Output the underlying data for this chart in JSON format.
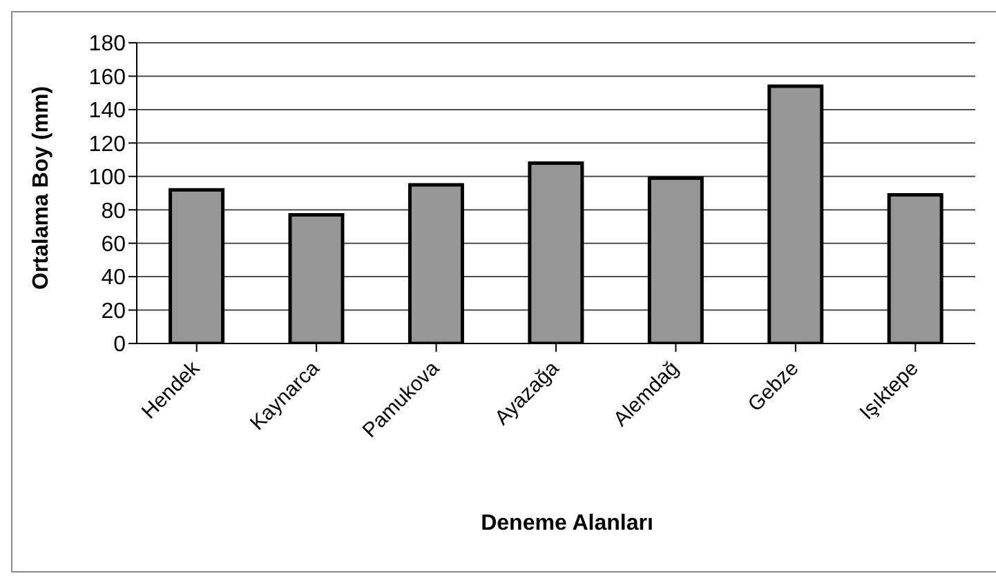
{
  "chart_data": {
    "type": "bar",
    "xlabel": "Deneme Alanları",
    "ylabel": "Ortalama Boy (mm)",
    "categories": [
      "Hendek",
      "Kaynarca",
      "Pamukova",
      "Ayazağa",
      "Alemdağ",
      "Gebze",
      "Işıktepe"
    ],
    "values": [
      92,
      77,
      95,
      108,
      99,
      154,
      89
    ],
    "color": "#969696",
    "ylim": [
      0,
      180
    ],
    "yticks": [
      0,
      20,
      40,
      60,
      80,
      100,
      120,
      140,
      160,
      180
    ],
    "grid": "y"
  }
}
